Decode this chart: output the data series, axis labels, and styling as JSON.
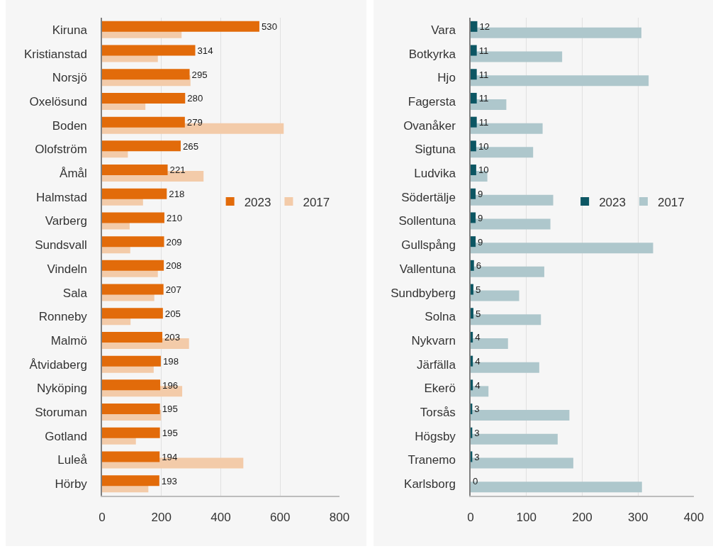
{
  "chart_data": [
    {
      "type": "bar",
      "orientation": "horizontal",
      "categories": [
        "Kiruna",
        "Kristianstad",
        "Norsjö",
        "Oxelösund",
        "Boden",
        "Olofström",
        "Åmål",
        "Halmstad",
        "Varberg",
        "Sundsvall",
        "Vindeln",
        "Sala",
        "Ronneby",
        "Malmö",
        "Åtvidaberg",
        "Nyköping",
        "Storuman",
        "Gotland",
        "Luleå",
        "Hörby"
      ],
      "series": [
        {
          "name": "2023",
          "color": "#e26b0a",
          "values": [
            530,
            314,
            295,
            280,
            279,
            265,
            221,
            218,
            210,
            209,
            208,
            207,
            205,
            203,
            198,
            196,
            195,
            195,
            194,
            193
          ],
          "value_labels": [
            "530",
            "314",
            "295",
            "280",
            "279",
            "265",
            "221",
            "218",
            "210",
            "209",
            "208",
            "207",
            "205",
            "203",
            "198",
            "196",
            "195",
            "195",
            "194",
            "193"
          ]
        },
        {
          "name": "2017",
          "color": "#f3cba9",
          "values": [
            268,
            188,
            298,
            146,
            612,
            87,
            342,
            138,
            93,
            95,
            188,
            176,
            96,
            293,
            174,
            270,
            199,
            114,
            476,
            156
          ]
        }
      ],
      "xlim": [
        0,
        800
      ],
      "xticks": [
        0,
        200,
        400,
        600,
        800
      ],
      "grid": "x",
      "legend": "right"
    },
    {
      "type": "bar",
      "orientation": "horizontal",
      "categories": [
        "Vara",
        "Botkyrka",
        "Hjo",
        "Fagersta",
        "Ovanåker",
        "Sigtuna",
        "Ludvika",
        "Södertälje",
        "Sollentuna",
        "Gullspång",
        "Vallentuna",
        "Sundbyberg",
        "Solna",
        "Nykvarn",
        "Järfälla",
        "Ekerö",
        "Torsås",
        "Högsby",
        "Tranemo",
        "Karlsborg"
      ],
      "series": [
        {
          "name": "2023",
          "color": "#0c5663",
          "values": [
            12,
            11,
            11,
            11,
            11,
            10,
            10,
            9,
            9,
            9,
            6,
            5,
            5,
            4,
            4,
            4,
            3,
            3,
            3,
            0
          ],
          "value_labels": [
            "12",
            "11",
            "11",
            "11",
            "11",
            "10",
            "10",
            "9",
            "9",
            "9",
            "6",
            "5",
            "5",
            "4",
            "4",
            "4",
            "3",
            "3",
            "3",
            "0"
          ]
        },
        {
          "name": "2017",
          "color": "#aec7cc",
          "values": [
            306,
            164,
            319,
            64,
            129,
            112,
            30,
            148,
            143,
            327,
            132,
            87,
            126,
            67,
            123,
            32,
            177,
            156,
            184,
            307
          ]
        }
      ],
      "xlim": [
        0,
        400
      ],
      "xticks": [
        0,
        100,
        200,
        300,
        400
      ],
      "grid": "x",
      "legend": "right"
    }
  ]
}
